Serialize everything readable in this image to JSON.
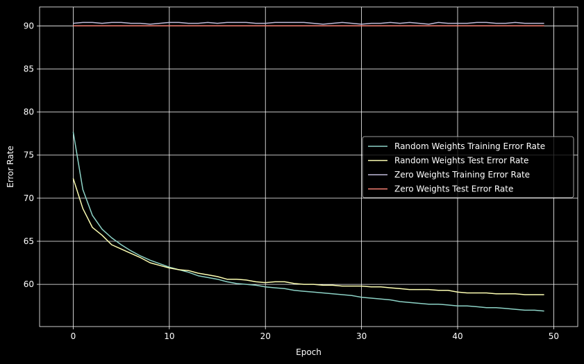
{
  "chart_data": {
    "type": "line",
    "title": "",
    "xlabel": "Epoch",
    "ylabel": "Error Rate",
    "xlim": [
      -3.5,
      52.5
    ],
    "ylim": [
      55.1,
      92.2
    ],
    "xticks": [
      0,
      10,
      20,
      30,
      40,
      50
    ],
    "yticks": [
      60,
      65,
      70,
      75,
      80,
      85,
      90
    ],
    "grid": true,
    "legend_position": "center-right",
    "x": [
      0,
      1,
      2,
      3,
      4,
      5,
      6,
      7,
      8,
      9,
      10,
      11,
      12,
      13,
      14,
      15,
      16,
      17,
      18,
      19,
      20,
      21,
      22,
      23,
      24,
      25,
      26,
      27,
      28,
      29,
      30,
      31,
      32,
      33,
      34,
      35,
      36,
      37,
      38,
      39,
      40,
      41,
      42,
      43,
      44,
      45,
      46,
      47,
      48,
      49
    ],
    "series": [
      {
        "name": "Random Weights Training Error Rate",
        "color": "#8dd3c7",
        "values": [
          77.7,
          71.0,
          68.0,
          66.4,
          65.4,
          64.6,
          63.9,
          63.3,
          62.8,
          62.4,
          62.0,
          61.7,
          61.4,
          61.0,
          60.8,
          60.6,
          60.3,
          60.1,
          60.0,
          59.9,
          59.7,
          59.6,
          59.5,
          59.3,
          59.2,
          59.1,
          59.0,
          58.9,
          58.8,
          58.7,
          58.5,
          58.4,
          58.3,
          58.2,
          58.0,
          57.9,
          57.8,
          57.7,
          57.7,
          57.6,
          57.5,
          57.5,
          57.4,
          57.3,
          57.3,
          57.2,
          57.1,
          57.0,
          57.0,
          56.9
        ]
      },
      {
        "name": "Random Weights Test Error Rate",
        "color": "#feffb3",
        "values": [
          72.3,
          68.8,
          66.6,
          65.7,
          64.6,
          64.1,
          63.6,
          63.1,
          62.5,
          62.2,
          61.9,
          61.7,
          61.6,
          61.3,
          61.1,
          60.9,
          60.6,
          60.6,
          60.5,
          60.3,
          60.2,
          60.3,
          60.3,
          60.1,
          60.0,
          60.0,
          59.9,
          59.9,
          59.8,
          59.8,
          59.8,
          59.7,
          59.7,
          59.6,
          59.5,
          59.4,
          59.4,
          59.4,
          59.3,
          59.3,
          59.1,
          59.0,
          59.0,
          59.0,
          58.9,
          58.9,
          58.9,
          58.8,
          58.8,
          58.8
        ]
      },
      {
        "name": "Zero Weights Training Error Rate",
        "color": "#bfbbd9",
        "values": [
          90.3,
          90.4,
          90.4,
          90.3,
          90.4,
          90.4,
          90.3,
          90.3,
          90.2,
          90.3,
          90.4,
          90.4,
          90.3,
          90.3,
          90.4,
          90.3,
          90.4,
          90.4,
          90.4,
          90.3,
          90.3,
          90.4,
          90.4,
          90.4,
          90.4,
          90.3,
          90.2,
          90.3,
          90.4,
          90.3,
          90.2,
          90.3,
          90.3,
          90.4,
          90.3,
          90.4,
          90.3,
          90.2,
          90.4,
          90.3,
          90.3,
          90.3,
          90.4,
          90.4,
          90.3,
          90.3,
          90.4,
          90.3,
          90.3,
          90.3
        ]
      },
      {
        "name": "Zero Weights Test Error Rate",
        "color": "#fa8174",
        "values": [
          90.0,
          90.0,
          90.0,
          90.0,
          90.0,
          90.0,
          90.0,
          90.0,
          90.0,
          90.0,
          90.0,
          90.0,
          90.0,
          90.0,
          90.0,
          90.0,
          90.0,
          90.0,
          90.0,
          90.0,
          90.0,
          90.0,
          90.0,
          90.0,
          90.0,
          90.0,
          90.0,
          90.0,
          90.0,
          90.0,
          90.0,
          90.0,
          90.0,
          90.0,
          90.0,
          90.0,
          90.0,
          90.0,
          90.0,
          90.0,
          90.0,
          90.0,
          90.0,
          90.0,
          90.0,
          90.0,
          90.0,
          90.0,
          90.0,
          90.0
        ]
      }
    ]
  }
}
